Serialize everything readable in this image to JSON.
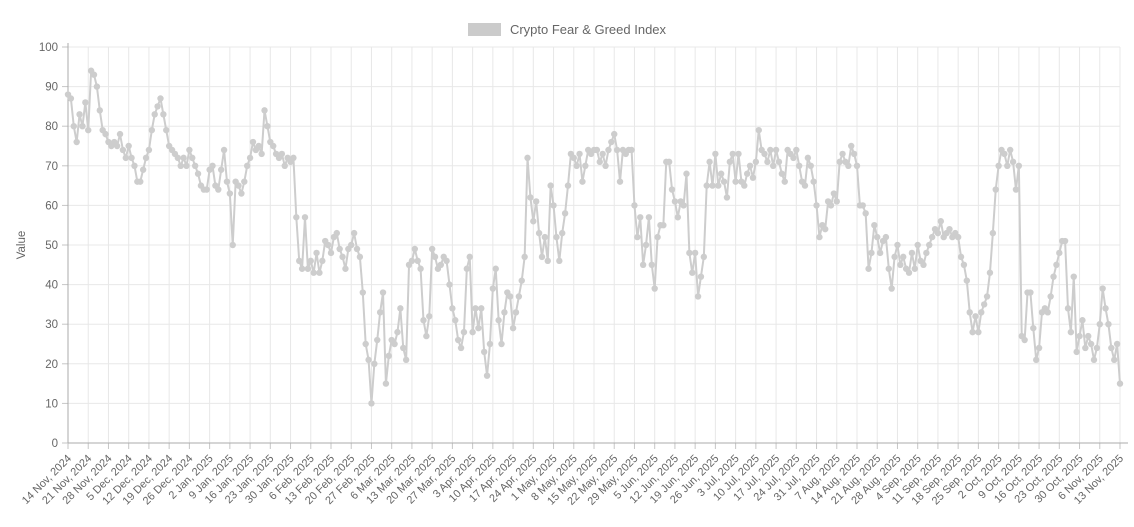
{
  "legend": {
    "label": "Crypto Fear & Greed Index"
  },
  "colors": {
    "series": "#cdcdcd",
    "legend_swatch": "#cbcbcb",
    "grid": "#e8e8e8",
    "axis": "#ababab",
    "tick": "#c6c6c6",
    "text": "#666666"
  },
  "chart_data": {
    "type": "line",
    "title": "Crypto Fear & Greed Index",
    "xlabel": "",
    "ylabel": "Value",
    "ylim": [
      0,
      100
    ],
    "y_ticks": [
      0,
      10,
      20,
      30,
      40,
      50,
      60,
      70,
      80,
      90,
      100
    ],
    "grid": true,
    "markers": true,
    "legend_position": "top",
    "x_tick_labels": [
      "14 Nov, 2024",
      "21 Nov, 2024",
      "28 Nov, 2024",
      "5 Dec, 2024",
      "12 Dec, 2024",
      "19 Dec, 2024",
      "26 Dec, 2024",
      "2 Jan, 2025",
      "9 Jan, 2025",
      "16 Jan, 2025",
      "23 Jan, 2025",
      "30 Jan, 2025",
      "6 Feb, 2025",
      "13 Feb, 2025",
      "20 Feb, 2025",
      "27 Feb, 2025",
      "6 Mar, 2025",
      "13 Mar, 2025",
      "20 Mar, 2025",
      "27 Mar, 2025",
      "3 Apr, 2025",
      "10 Apr, 2025",
      "17 Apr, 2025",
      "24 Apr, 2025",
      "1 May, 2025",
      "8 May, 2025",
      "15 May, 2025",
      "22 May, 2025",
      "29 May, 2025",
      "5 Jun, 2025",
      "12 Jun, 2025",
      "19 Jun, 2025",
      "26 Jun, 2025",
      "3 Jul, 2025",
      "10 Jul, 2025",
      "17 Jul, 2025",
      "24 Jul, 2025",
      "31 Jul, 2025",
      "7 Aug, 2025",
      "14 Aug, 2025",
      "21 Aug, 2025",
      "28 Aug, 2025",
      "4 Sep, 2025",
      "11 Sep, 2025",
      "18 Sep, 2025",
      "25 Sep, 2025",
      "2 Oct, 2025",
      "9 Oct, 2025",
      "16 Oct, 2025",
      "23 Oct, 2025",
      "30 Oct, 2025",
      "6 Nov, 2025",
      "13 Nov, 2025"
    ],
    "days_per_x_tick": 7,
    "series": [
      {
        "name": "Crypto Fear & Greed Index",
        "frequency": "daily",
        "values": [
          88,
          87,
          80,
          76,
          83,
          80,
          86,
          79,
          94,
          93,
          90,
          84,
          79,
          78,
          76,
          75,
          76,
          75,
          78,
          74,
          72,
          75,
          72,
          70,
          66,
          66,
          69,
          72,
          74,
          79,
          83,
          85,
          87,
          83,
          79,
          75,
          74,
          73,
          72,
          70,
          72,
          70,
          74,
          72,
          70,
          68,
          65,
          64,
          64,
          69,
          70,
          65,
          64,
          69,
          74,
          66,
          63,
          50,
          66,
          65,
          63,
          66,
          70,
          72,
          76,
          74,
          75,
          73,
          84,
          80,
          76,
          75,
          73,
          72,
          73,
          70,
          72,
          71,
          72,
          57,
          46,
          44,
          57,
          44,
          46,
          43,
          48,
          43,
          46,
          51,
          50,
          48,
          52,
          53,
          49,
          47,
          44,
          49,
          50,
          53,
          49,
          47,
          38,
          25,
          21,
          10,
          20,
          26,
          33,
          38,
          15,
          22,
          26,
          25,
          28,
          34,
          24,
          21,
          45,
          46,
          49,
          46,
          44,
          31,
          27,
          32,
          49,
          47,
          44,
          45,
          47,
          46,
          40,
          34,
          31,
          26,
          24,
          28,
          44,
          47,
          28,
          34,
          29,
          34,
          23,
          17,
          25,
          39,
          44,
          31,
          25,
          33,
          38,
          37,
          29,
          33,
          37,
          41,
          47,
          72,
          62,
          56,
          61,
          53,
          47,
          52,
          46,
          65,
          60,
          52,
          46,
          53,
          58,
          65,
          73,
          72,
          70,
          73,
          66,
          70,
          74,
          73,
          74,
          74,
          71,
          73,
          70,
          74,
          76,
          78,
          74,
          66,
          74,
          73,
          74,
          74,
          60,
          52,
          57,
          45,
          50,
          57,
          45,
          39,
          52,
          55,
          55,
          71,
          71,
          64,
          61,
          57,
          61,
          60,
          68,
          48,
          43,
          48,
          37,
          42,
          47,
          65,
          71,
          65,
          73,
          65,
          68,
          66,
          62,
          71,
          73,
          66,
          73,
          66,
          65,
          68,
          70,
          67,
          71,
          79,
          74,
          73,
          71,
          74,
          70,
          74,
          71,
          68,
          66,
          74,
          73,
          72,
          74,
          70,
          66,
          65,
          72,
          70,
          66,
          60,
          52,
          55,
          54,
          61,
          60,
          63,
          61,
          71,
          73,
          71,
          70,
          75,
          73,
          70,
          60,
          60,
          58,
          44,
          48,
          55,
          52,
          48,
          51,
          52,
          44,
          39,
          47,
          50,
          45,
          47,
          44,
          43,
          48,
          44,
          50,
          46,
          45,
          48,
          50,
          52,
          54,
          53,
          56,
          52,
          53,
          54,
          52,
          53,
          52,
          47,
          45,
          41,
          33,
          28,
          32,
          28,
          33,
          35,
          37,
          43,
          53,
          64,
          70,
          74,
          73,
          70,
          74,
          71,
          64,
          70,
          27,
          26,
          38,
          38,
          29,
          21,
          24,
          33,
          34,
          33,
          37,
          42,
          45,
          48,
          51,
          51,
          34,
          28,
          42,
          23,
          27,
          31,
          24,
          27,
          25,
          21,
          24,
          30,
          39,
          34,
          30,
          24,
          21,
          25,
          15
        ]
      }
    ]
  }
}
